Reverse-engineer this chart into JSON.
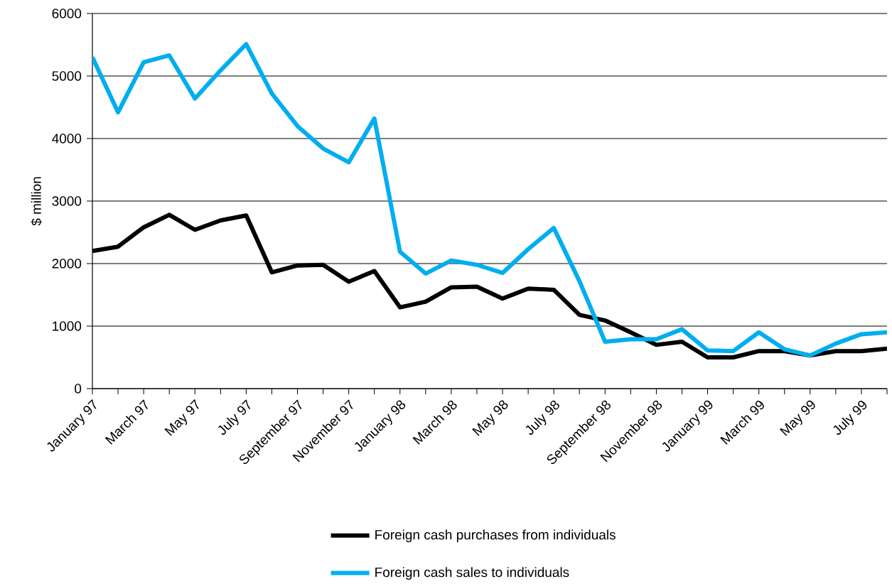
{
  "chart_data": {
    "type": "line",
    "ylabel": "$ million",
    "categories": [
      "January 97",
      null,
      "March 97",
      null,
      "May 97",
      null,
      "July 97",
      null,
      "September 97",
      null,
      "November 97",
      null,
      "January 98",
      null,
      "March 98",
      null,
      "May 98",
      null,
      "July 98",
      null,
      "September 98",
      null,
      "November 98",
      null,
      "January 99",
      null,
      "March 99",
      null,
      "May 99",
      null,
      "July 99",
      null
    ],
    "series": [
      {
        "name": "Foreign cash purchases from individuals",
        "color": "#000000",
        "values": [
          2200,
          2270,
          2580,
          2780,
          2540,
          2690,
          2770,
          1860,
          1970,
          1980,
          1710,
          1880,
          1300,
          1390,
          1620,
          1630,
          1440,
          1600,
          1580,
          1180,
          1090,
          900,
          700,
          750,
          500,
          500,
          600,
          600,
          530,
          600,
          600,
          640
        ]
      },
      {
        "name": "Foreign cash sales to individuals",
        "color": "#00aeef",
        "values": [
          5300,
          4420,
          5220,
          5330,
          4640,
          5090,
          5510,
          4720,
          4200,
          3840,
          3620,
          4320,
          2190,
          1840,
          2050,
          1980,
          1850,
          2230,
          2570,
          1720,
          750,
          790,
          790,
          950,
          610,
          600,
          900,
          630,
          530,
          720,
          870,
          900
        ]
      }
    ],
    "ylim": [
      0,
      6000
    ],
    "yticks": [
      0,
      1000,
      2000,
      3000,
      4000,
      5000,
      6000
    ],
    "grid": "y",
    "legend": "bottom",
    "line_style": "solid"
  }
}
